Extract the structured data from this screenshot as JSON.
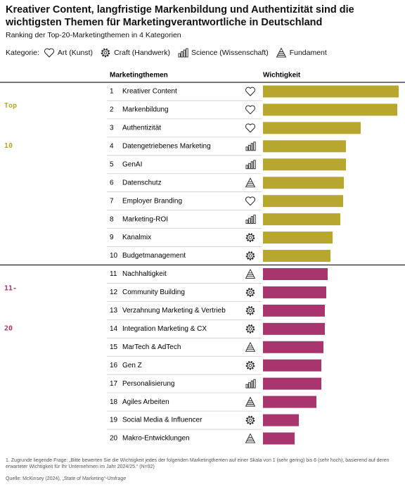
{
  "chart_data": {
    "type": "bar",
    "title": "Kreativer Content, langfristige Markenbildung und Authentizität sind die wichtigsten Themen für Marketingverantwortliche in Deutschland",
    "subtitle": "Ranking der Top-20-Marketingthemen in 4 Kategorien",
    "legend_title": "Kategorie:",
    "legend": [
      {
        "label": "Art (Kunst)",
        "icon": "heart"
      },
      {
        "label": "Craft (Handwerk)",
        "icon": "gear"
      },
      {
        "label": "Science (Wissenschaft)",
        "icon": "bars"
      },
      {
        "label": "Fundament",
        "icon": "pyramid"
      }
    ],
    "column_headers": [
      "Marketingthemen",
      "Wichtigkeit"
    ],
    "series": [
      {
        "label": [
          "Top",
          "10"
        ],
        "color": "#b7a72f",
        "ranks": [
          1,
          2,
          3,
          4,
          5,
          6,
          7,
          8,
          9,
          10
        ],
        "categories": [
          "Kreativer Content",
          "Markenbildung",
          "Authentizität",
          "Datengetriebenes Marketing",
          "GenAI",
          "Datenschutz",
          "Employer Branding",
          "Marketing-ROI",
          "Kanalmix",
          "Budgetmanagement"
        ],
        "icons": [
          "heart",
          "heart",
          "heart",
          "bars",
          "bars",
          "pyramid",
          "heart",
          "bars",
          "gear",
          "gear"
        ],
        "values": [
          193,
          191,
          139,
          118,
          118,
          115,
          114,
          110,
          99,
          96
        ]
      },
      {
        "label": [
          "11-",
          "20"
        ],
        "color": "#a8356e",
        "ranks": [
          11,
          12,
          13,
          14,
          15,
          16,
          17,
          18,
          19,
          20
        ],
        "categories": [
          "Nachhaltigkeit",
          "Community Building",
          "Verzahnung Marketing & Vertrieb",
          "Integration Marketing & CX",
          "MarTech & AdTech",
          "Gen Z",
          "Personalisierung",
          "Agiles Arbeiten",
          "Social Media & Influencer",
          "Makro-Entwicklungen"
        ],
        "icons": [
          "pyramid",
          "gear",
          "gear",
          "gear",
          "pyramid",
          "gear",
          "bars",
          "pyramid",
          "gear",
          "pyramid"
        ],
        "values": [
          92,
          90,
          88,
          88,
          86,
          83,
          83,
          76,
          51,
          45
        ]
      }
    ],
    "footnote": "1. Zugrunde liegende Frage: „Bitte bewerten Sie die Wichtigkeit jedes der folgenden Marketingthemen auf einer Skala von 1 (sehr gering) bis 6 (sehr hoch), basierend auf deren erwarteter Wichtigkeit für Ihr Unternehmen im Jahr 2024/25.“ (N=92)",
    "source": "Quelle: McKinsey (2024), „State of Marketing“-Umfrage"
  }
}
